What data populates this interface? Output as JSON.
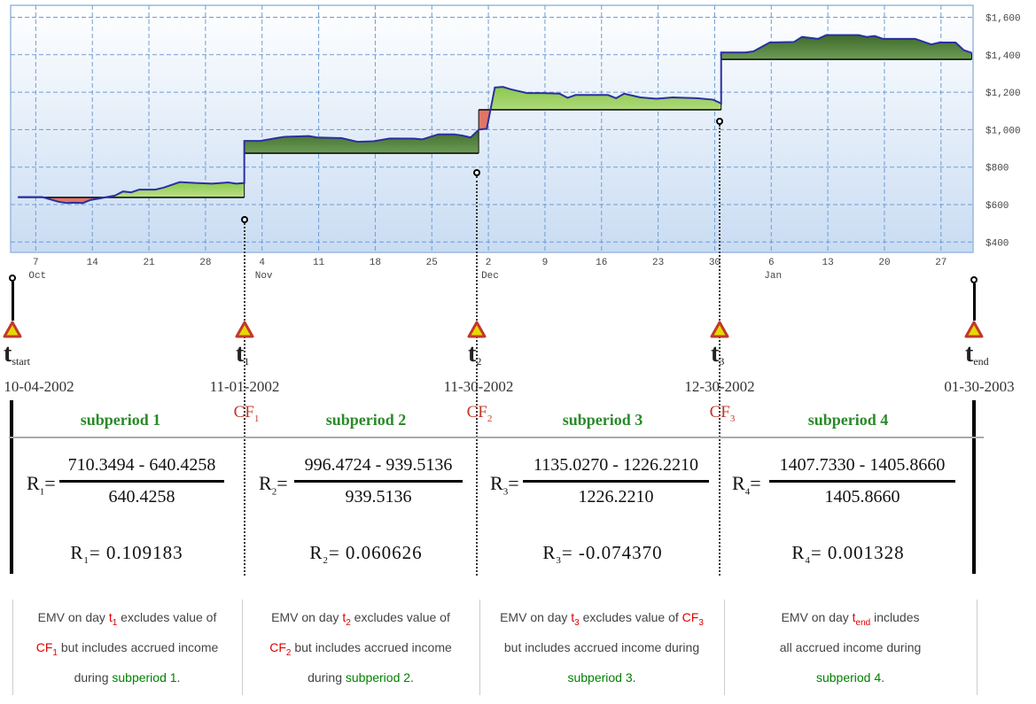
{
  "chart_data": {
    "type": "area",
    "y_ticks": [
      "$400",
      "$600",
      "$800",
      "$1,000",
      "$1,200",
      "$1,400",
      "$1,600"
    ],
    "y_tick_values": [
      400,
      600,
      800,
      1000,
      1200,
      1400,
      1600
    ],
    "ylim": [
      360,
      1660
    ],
    "x_ticks": [
      {
        "date": "2002-10-07",
        "label": "7",
        "month": "Oct"
      },
      {
        "date": "2002-10-14",
        "label": "14"
      },
      {
        "date": "2002-10-21",
        "label": "21"
      },
      {
        "date": "2002-10-28",
        "label": "28"
      },
      {
        "date": "2002-11-04",
        "label": "4",
        "month": "Nov"
      },
      {
        "date": "2002-11-11",
        "label": "11"
      },
      {
        "date": "2002-11-18",
        "label": "18"
      },
      {
        "date": "2002-11-25",
        "label": "25"
      },
      {
        "date": "2002-12-02",
        "label": "2",
        "month": "Dec"
      },
      {
        "date": "2002-12-09",
        "label": "9"
      },
      {
        "date": "2002-12-16",
        "label": "16"
      },
      {
        "date": "2002-12-23",
        "label": "23"
      },
      {
        "date": "2002-12-30",
        "label": "30"
      },
      {
        "date": "2003-01-06",
        "label": "6",
        "month": "Jan"
      },
      {
        "date": "2003-01-13",
        "label": "13"
      },
      {
        "date": "2003-01-20",
        "label": "20"
      },
      {
        "date": "2003-01-27",
        "label": "27"
      }
    ],
    "xlim": [
      "2002-10-04",
      "2003-01-31"
    ],
    "grid": true,
    "colors": {
      "line": "#2b2fa0",
      "above_light": "#a9d870",
      "above_dark": "#4f7d37",
      "below": "#e07566",
      "baseline": "#111111"
    },
    "subperiods": [
      {
        "baseline": 638,
        "shade": "light",
        "points": [
          [
            "2002-10-04",
            640
          ],
          [
            "2002-10-07",
            640
          ],
          [
            "2002-10-09",
            615
          ],
          [
            "2002-10-10",
            608
          ],
          [
            "2002-10-11",
            610
          ],
          [
            "2002-10-12",
            608
          ],
          [
            "2002-10-13",
            625
          ],
          [
            "2002-10-14",
            632
          ],
          [
            "2002-10-15",
            640
          ],
          [
            "2002-10-16",
            648
          ],
          [
            "2002-10-17",
            670
          ],
          [
            "2002-10-18",
            665
          ],
          [
            "2002-10-19",
            680
          ],
          [
            "2002-10-21",
            680
          ],
          [
            "2002-10-22",
            690
          ],
          [
            "2002-10-24",
            720
          ],
          [
            "2002-10-26",
            715
          ],
          [
            "2002-10-28",
            712
          ],
          [
            "2002-10-30",
            718
          ],
          [
            "2002-10-31",
            712
          ],
          [
            "2002-11-01",
            715
          ]
        ]
      },
      {
        "baseline": 874,
        "shade": "dark",
        "points": [
          [
            "2002-11-01",
            940
          ],
          [
            "2002-11-03",
            940
          ],
          [
            "2002-11-05",
            955
          ],
          [
            "2002-11-06",
            962
          ],
          [
            "2002-11-09",
            966
          ],
          [
            "2002-11-10",
            958
          ],
          [
            "2002-11-13",
            955
          ],
          [
            "2002-11-15",
            935
          ],
          [
            "2002-11-17",
            938
          ],
          [
            "2002-11-19",
            953
          ],
          [
            "2002-11-22",
            952
          ],
          [
            "2002-11-23",
            948
          ],
          [
            "2002-11-25",
            975
          ],
          [
            "2002-11-27",
            975
          ],
          [
            "2002-11-28",
            968
          ],
          [
            "2002-11-29",
            958
          ],
          [
            "2002-11-30",
            1000
          ]
        ]
      },
      {
        "baseline": 1106,
        "shade": "light",
        "points": [
          [
            "2002-11-30",
            1000
          ],
          [
            "2002-12-01",
            1005
          ],
          [
            "2002-12-02",
            1225
          ],
          [
            "2002-12-03",
            1228
          ],
          [
            "2002-12-04",
            1215
          ],
          [
            "2002-12-06",
            1195
          ],
          [
            "2002-12-08",
            1195
          ],
          [
            "2002-12-10",
            1192
          ],
          [
            "2002-12-11",
            1170
          ],
          [
            "2002-12-12",
            1185
          ],
          [
            "2002-12-16",
            1185
          ],
          [
            "2002-12-17",
            1168
          ],
          [
            "2002-12-18",
            1192
          ],
          [
            "2002-12-20",
            1172
          ],
          [
            "2002-12-22",
            1165
          ],
          [
            "2002-12-24",
            1172
          ],
          [
            "2002-12-27",
            1168
          ],
          [
            "2002-12-29",
            1160
          ],
          [
            "2002-12-30",
            1140
          ]
        ]
      },
      {
        "baseline": 1375,
        "shade": "dark",
        "points": [
          [
            "2002-12-30",
            1412
          ],
          [
            "2003-01-02",
            1412
          ],
          [
            "2003-01-03",
            1418
          ],
          [
            "2003-01-05",
            1465
          ],
          [
            "2003-01-08",
            1468
          ],
          [
            "2003-01-09",
            1495
          ],
          [
            "2003-01-11",
            1485
          ],
          [
            "2003-01-12",
            1505
          ],
          [
            "2003-01-16",
            1505
          ],
          [
            "2003-01-17",
            1495
          ],
          [
            "2003-01-18",
            1500
          ],
          [
            "2003-01-19",
            1485
          ],
          [
            "2003-01-23",
            1485
          ],
          [
            "2003-01-25",
            1455
          ],
          [
            "2003-01-26",
            1465
          ],
          [
            "2003-01-28",
            1465
          ],
          [
            "2003-01-29",
            1425
          ],
          [
            "2003-01-30",
            1410
          ]
        ]
      }
    ]
  },
  "timeline": {
    "points": [
      {
        "t": "t",
        "sub": "start",
        "date": "10-04-2002"
      },
      {
        "t": "t",
        "sub": "1",
        "date": "11-01-2002"
      },
      {
        "t": "t",
        "sub": "2",
        "date": "11-30-2002"
      },
      {
        "t": "t",
        "sub": "3",
        "date": "12-30-2002"
      },
      {
        "t": "t",
        "sub": "end",
        "date": "01-30-2003"
      }
    ],
    "cash_flows": [
      {
        "label": "CF",
        "sub": "1"
      },
      {
        "label": "CF",
        "sub": "2"
      },
      {
        "label": "CF",
        "sub": "3"
      }
    ],
    "subperiods": [
      "subperiod 1",
      "subperiod 2",
      "subperiod 3",
      "subperiod 4"
    ],
    "colors": {
      "marker_fill": "#e8d800",
      "marker_stroke": "#c0392b",
      "cf": "#c0392b",
      "subperiod": "#2a8a2a"
    }
  },
  "formulas": [
    {
      "r": "R",
      "sub": "1",
      "eq": "=",
      "numerator": "710.3494 - 640.4258",
      "denominator": "640.4258",
      "result": "= 0.109183"
    },
    {
      "r": "R",
      "sub": "2",
      "eq": "=",
      "numerator": "996.4724 - 939.5136",
      "denominator": "939.5136",
      "result": "= 0.060626"
    },
    {
      "r": "R",
      "sub": "3",
      "eq": "=",
      "numerator": "1135.0270 - 1226.2210",
      "denominator": "1226.2210",
      "result": "= -0.074370"
    },
    {
      "r": "R",
      "sub": "4",
      "eq": "=",
      "numerator": "1407.7330 - 1405.8660",
      "denominator": "1405.8660",
      "result": "= 0.001328"
    }
  ],
  "notes": [
    {
      "lines": [
        [
          {
            "t": "EMV on day "
          },
          {
            "t": "t",
            "sub": "1",
            "color": "#e00000"
          },
          {
            "t": " excludes value of"
          }
        ],
        [
          {
            "t": "CF",
            "sub": "1",
            "color": "#e00000"
          },
          {
            "t": " but includes accrued income"
          }
        ],
        [
          {
            "t": "during "
          },
          {
            "t": "subperiod 1",
            "color": "#008000"
          },
          {
            "t": "."
          }
        ]
      ]
    },
    {
      "lines": [
        [
          {
            "t": "EMV on day "
          },
          {
            "t": "t",
            "sub": "2",
            "color": "#e00000"
          },
          {
            "t": " excludes value of"
          }
        ],
        [
          {
            "t": "CF",
            "sub": "2",
            "color": "#e00000"
          },
          {
            "t": " but includes accrued income"
          }
        ],
        [
          {
            "t": "during "
          },
          {
            "t": "subperiod 2",
            "color": "#008000"
          },
          {
            "t": "."
          }
        ]
      ]
    },
    {
      "lines": [
        [
          {
            "t": "EMV on day "
          },
          {
            "t": "t",
            "sub": "3",
            "color": "#e00000"
          },
          {
            "t": " excludes value of "
          },
          {
            "t": "CF",
            "sub": "3",
            "color": "#e00000"
          }
        ],
        [
          {
            "t": "but includes accrued income during"
          }
        ],
        [
          {
            "t": "subperiod 3",
            "color": "#008000"
          },
          {
            "t": "."
          }
        ]
      ]
    },
    {
      "lines": [
        [
          {
            "t": "EMV on day "
          },
          {
            "t": "t",
            "sub": "end",
            "color": "#e00000"
          },
          {
            "t": " includes"
          }
        ],
        [
          {
            "t": "all accrued income during"
          }
        ],
        [
          {
            "t": "subperiod 4",
            "color": "#008000"
          },
          {
            "t": "."
          }
        ]
      ]
    }
  ]
}
